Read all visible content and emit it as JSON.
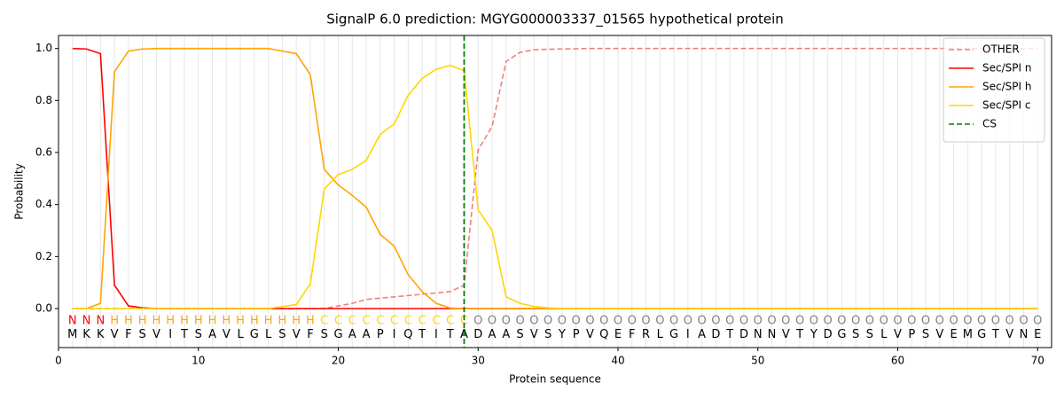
{
  "chart_data": {
    "type": "line",
    "title": "SignalP 6.0 prediction: MGYG000003337_01565 hypothetical protein",
    "xlabel": "Protein sequence",
    "ylabel": "Probability",
    "x": [
      1,
      2,
      3,
      4,
      5,
      6,
      7,
      8,
      9,
      10,
      11,
      12,
      13,
      14,
      15,
      16,
      17,
      18,
      19,
      20,
      21,
      22,
      23,
      24,
      25,
      26,
      27,
      28,
      29,
      30,
      31,
      32,
      33,
      34,
      35,
      36,
      37,
      38,
      39,
      40,
      41,
      42,
      43,
      44,
      45,
      46,
      47,
      48,
      49,
      50,
      51,
      52,
      53,
      54,
      55,
      56,
      57,
      58,
      59,
      60,
      61,
      62,
      63,
      64,
      65,
      66,
      67,
      68,
      69,
      70
    ],
    "sequence": [
      "M",
      "K",
      "K",
      "V",
      "F",
      "S",
      "V",
      "I",
      "T",
      "S",
      "A",
      "V",
      "L",
      "G",
      "L",
      "S",
      "V",
      "F",
      "S",
      "G",
      "A",
      "A",
      "P",
      "I",
      "Q",
      "T",
      "I",
      "T",
      "A",
      "D",
      "A",
      "A",
      "S",
      "V",
      "S",
      "Y",
      "P",
      "V",
      "Q",
      "E",
      "F",
      "R",
      "L",
      "G",
      "I",
      "A",
      "D",
      "T",
      "D",
      "N",
      "N",
      "V",
      "T",
      "Y",
      "D",
      "G",
      "S",
      "S",
      "L",
      "V",
      "P",
      "S",
      "V",
      "E",
      "M",
      "G",
      "T",
      "V",
      "N",
      "E"
    ],
    "labels": [
      "N",
      "N",
      "N",
      "H",
      "H",
      "H",
      "H",
      "H",
      "H",
      "H",
      "H",
      "H",
      "H",
      "H",
      "H",
      "H",
      "H",
      "H",
      "C",
      "C",
      "C",
      "C",
      "C",
      "C",
      "C",
      "C",
      "C",
      "C",
      "C",
      "O",
      "O",
      "O",
      "O",
      "O",
      "O",
      "O",
      "O",
      "O",
      "O",
      "O",
      "O",
      "O",
      "O",
      "O",
      "O",
      "O",
      "O",
      "O",
      "O",
      "O",
      "O",
      "O",
      "O",
      "O",
      "O",
      "O",
      "O",
      "O",
      "O",
      "O",
      "O",
      "O",
      "O",
      "O",
      "O",
      "O",
      "O",
      "O",
      "O",
      "O"
    ],
    "label_colors": {
      "N": "#ff0000",
      "H": "#ffa500",
      "C": "#ffd700",
      "O": "#808080"
    },
    "series": [
      {
        "name": "OTHER",
        "color": "#f08080",
        "dashed": true,
        "values": [
          0,
          0,
          0,
          0,
          0,
          0,
          0,
          0,
          0,
          0,
          0,
          0,
          0,
          0,
          0,
          0,
          0,
          0,
          0,
          0.01,
          0.02,
          0.035,
          0.04,
          0.045,
          0.05,
          0.055,
          0.06,
          0.065,
          0.09,
          0.61,
          0.7,
          0.95,
          0.985,
          0.995,
          0.997,
          0.998,
          0.999,
          1,
          1,
          1,
          1,
          1,
          1,
          1,
          1,
          1,
          1,
          1,
          1,
          1,
          1,
          1,
          1,
          1,
          1,
          1,
          1,
          1,
          1,
          1,
          1,
          1,
          1,
          1,
          1,
          1,
          1,
          1,
          1,
          1
        ]
      },
      {
        "name": "Sec/SPI n",
        "color": "#ff0000",
        "dashed": false,
        "values": [
          1,
          0.998,
          0.98,
          0.09,
          0.01,
          0.003,
          0,
          0,
          0,
          0,
          0,
          0,
          0,
          0,
          0,
          0,
          0,
          0,
          0,
          0,
          0,
          0,
          0,
          0,
          0,
          0,
          0,
          0,
          0,
          0,
          0,
          0,
          0,
          0,
          0,
          0,
          0,
          0,
          0,
          0,
          0,
          0,
          0,
          0,
          0,
          0,
          0,
          0,
          0,
          0,
          0,
          0,
          0,
          0,
          0,
          0,
          0,
          0,
          0,
          0,
          0,
          0,
          0,
          0,
          0,
          0,
          0,
          0,
          0,
          0
        ]
      },
      {
        "name": "Sec/SPI h",
        "color": "#ffa500",
        "dashed": false,
        "values": [
          0,
          0,
          0.02,
          0.91,
          0.99,
          0.998,
          1,
          1,
          1,
          1,
          1,
          1,
          1,
          1,
          1,
          0.99,
          0.98,
          0.9,
          0.535,
          0.475,
          0.435,
          0.39,
          0.285,
          0.24,
          0.13,
          0.065,
          0.02,
          0.002,
          0,
          0,
          0,
          0,
          0,
          0,
          0,
          0,
          0,
          0,
          0,
          0,
          0,
          0,
          0,
          0,
          0,
          0,
          0,
          0,
          0,
          0,
          0,
          0,
          0,
          0,
          0,
          0,
          0,
          0,
          0,
          0,
          0,
          0,
          0,
          0,
          0,
          0,
          0,
          0,
          0,
          0
        ]
      },
      {
        "name": "Sec/SPI c",
        "color": "#ffd700",
        "dashed": false,
        "values": [
          0,
          0,
          0,
          0,
          0,
          0,
          0,
          0,
          0,
          0,
          0,
          0,
          0,
          0,
          0,
          0.008,
          0.015,
          0.095,
          0.46,
          0.515,
          0.535,
          0.57,
          0.67,
          0.71,
          0.82,
          0.885,
          0.92,
          0.935,
          0.915,
          0.38,
          0.3,
          0.045,
          0.02,
          0.008,
          0.003,
          0,
          0,
          0,
          0,
          0,
          0,
          0,
          0,
          0,
          0,
          0,
          0,
          0,
          0,
          0,
          0,
          0,
          0,
          0,
          0,
          0,
          0,
          0,
          0,
          0,
          0,
          0,
          0,
          0,
          0,
          0,
          0,
          0,
          0,
          0
        ]
      }
    ],
    "cs": {
      "name": "CS",
      "x": 29,
      "color": "#008000"
    },
    "xlim": [
      0,
      71
    ],
    "ylim": [
      -0.15,
      1.05
    ],
    "xticks": [
      0,
      10,
      20,
      30,
      40,
      50,
      60,
      70
    ],
    "yticks": [
      {
        "value": 0,
        "label": "0.0"
      },
      0.2,
      0.4,
      0.6,
      0.8,
      {
        "value": 1,
        "label": "1.0"
      }
    ],
    "grid": true,
    "legend": "upper right"
  }
}
